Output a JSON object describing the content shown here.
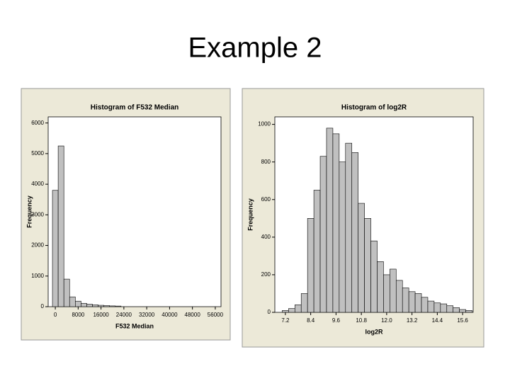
{
  "slide_title": "Example 2",
  "chart_data": [
    {
      "type": "histogram",
      "title": "Histogram of F532 Median",
      "xlabel": "F532 Median",
      "ylabel": "Frequency",
      "bins": [
        -1000,
        1000,
        3000,
        5000,
        7000,
        9000,
        11000,
        13000,
        15000,
        17000,
        19000,
        21000,
        23000
      ],
      "values": [
        3800,
        5250,
        900,
        320,
        180,
        110,
        80,
        60,
        45,
        35,
        25,
        20
      ],
      "color": "#c0c0c0",
      "xlim": [
        -2500,
        58000
      ],
      "xticks": [
        0,
        8000,
        16000,
        24000,
        32000,
        40000,
        48000,
        56000
      ],
      "ylim": [
        0,
        6200
      ],
      "yticks": [
        0,
        1000,
        2000,
        3000,
        4000,
        5000,
        6000
      ]
    },
    {
      "type": "histogram",
      "title": "Histogram of log2R",
      "xlabel": "log2R",
      "ylabel": "Frequency",
      "bins": [
        7.05,
        7.35,
        7.65,
        7.95,
        8.25,
        8.55,
        8.85,
        9.15,
        9.45,
        9.75,
        10.05,
        10.35,
        10.65,
        10.95,
        11.25,
        11.55,
        11.85,
        12.15,
        12.45,
        12.75,
        13.05,
        13.35,
        13.65,
        13.95,
        14.25,
        14.55,
        14.85,
        15.15,
        15.45,
        15.75,
        16.05
      ],
      "values": [
        10,
        20,
        40,
        100,
        500,
        650,
        830,
        980,
        950,
        800,
        900,
        850,
        580,
        500,
        380,
        270,
        200,
        230,
        170,
        130,
        110,
        100,
        80,
        60,
        50,
        45,
        35,
        25,
        15,
        10
      ],
      "color": "#c0c0c0",
      "xlim": [
        6.7,
        16.1
      ],
      "xticks": [
        7.2,
        8.4,
        9.6,
        10.8,
        {
          "value": 12,
          "label": "12.0"
        },
        13.2,
        14.4,
        15.6
      ],
      "ylim": [
        0,
        1040
      ],
      "yticks": [
        0,
        200,
        400,
        600,
        800,
        1000
      ]
    }
  ]
}
